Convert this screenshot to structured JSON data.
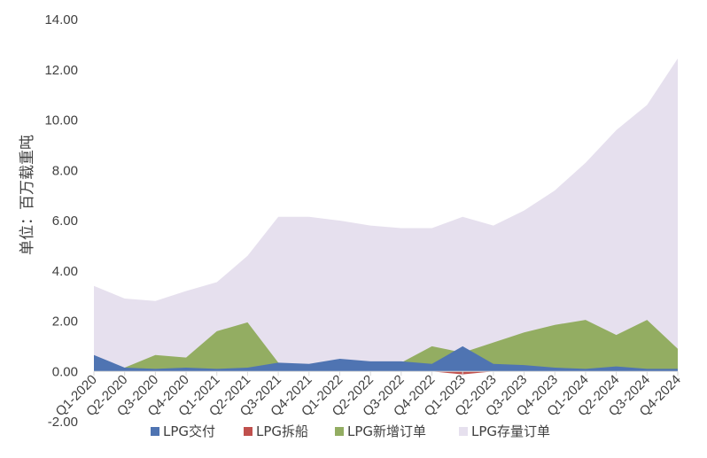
{
  "chart_data": {
    "type": "area",
    "ylabel": "单位：百万载重吨",
    "ylim": [
      -2,
      14
    ],
    "ytick_labels": [
      "-2.00",
      "0.00",
      "2.00",
      "4.00",
      "6.00",
      "8.00",
      "10.00",
      "12.00",
      "14.00"
    ],
    "categories": [
      "Q1-2020",
      "Q2-2020",
      "Q3-2020",
      "Q4-2020",
      "Q1-2021",
      "Q2-2021",
      "Q3-2021",
      "Q4-2021",
      "Q1-2022",
      "Q2-2022",
      "Q3-2022",
      "Q4-2022",
      "Q1-2023",
      "Q2-2023",
      "Q3-2023",
      "Q4-2023",
      "Q1-2024",
      "Q2-2024",
      "Q3-2024",
      "Q4-2024"
    ],
    "grid": false,
    "legend_position": "bottom",
    "series": [
      {
        "name": "LPG存量订单",
        "color": "#e6e0ee",
        "values": [
          3.4,
          2.9,
          2.8,
          3.2,
          3.55,
          4.6,
          6.15,
          6.15,
          6.0,
          5.8,
          5.7,
          5.7,
          6.15,
          5.8,
          6.4,
          7.2,
          8.3,
          9.6,
          10.6,
          12.45
        ]
      },
      {
        "name": "LPG新增订单",
        "color": "#93ad62",
        "values": [
          0.15,
          0.15,
          0.65,
          0.55,
          1.6,
          1.95,
          0.35,
          0.2,
          0.3,
          0.3,
          0.35,
          1.0,
          0.75,
          1.15,
          1.55,
          1.85,
          2.05,
          1.45,
          2.05,
          0.9
        ]
      },
      {
        "name": "LPG交付",
        "color": "#4f74b2",
        "values": [
          0.65,
          0.15,
          0.1,
          0.15,
          0.1,
          0.15,
          0.35,
          0.3,
          0.5,
          0.4,
          0.4,
          0.3,
          1.0,
          0.3,
          0.25,
          0.15,
          0.1,
          0.2,
          0.1,
          0.1
        ]
      },
      {
        "name": "LPG拆船",
        "color": "#c0504d",
        "values": [
          0,
          0,
          0,
          0,
          0,
          0,
          0,
          0,
          0,
          0,
          0,
          0,
          -0.12,
          0,
          0,
          0,
          0,
          0,
          0,
          0
        ]
      }
    ],
    "legend_order": [
      "LPG交付",
      "LPG拆船",
      "LPG新增订单",
      "LPG存量订单"
    ]
  }
}
